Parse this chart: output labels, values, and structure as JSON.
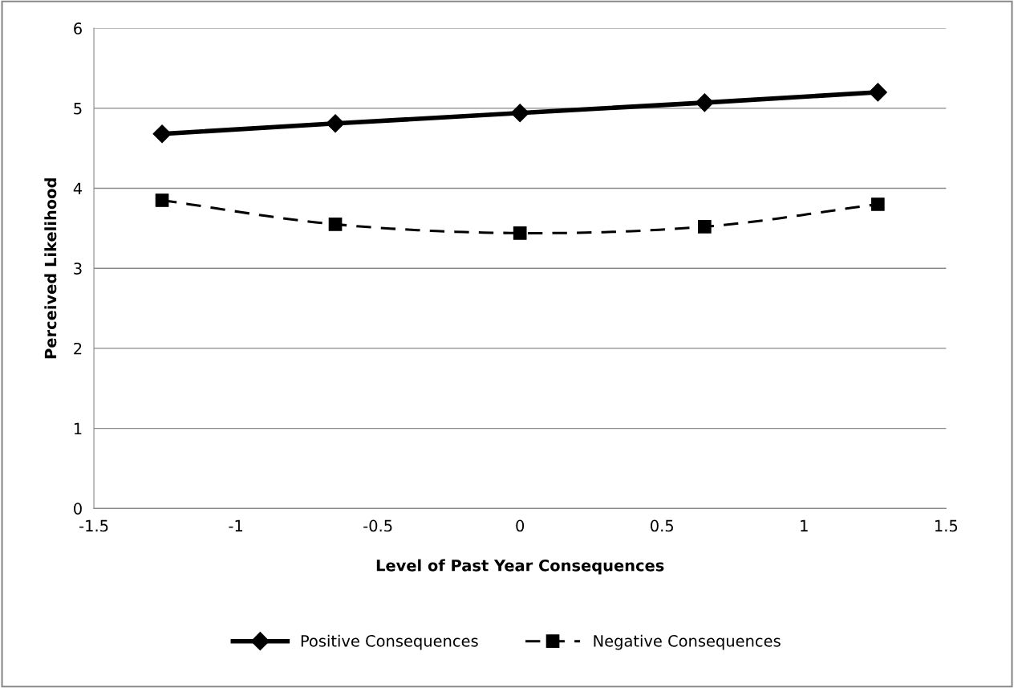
{
  "chart_data": {
    "type": "line",
    "xlabel": "Level of Past Year Consequences",
    "ylabel": "Perceived Likelihood",
    "x": [
      -1.26,
      -0.65,
      0,
      0.65,
      1.26
    ],
    "series": [
      {
        "name": "Positive Consequences",
        "color": "#000000",
        "values": [
          4.68,
          4.81,
          4.94,
          5.07,
          5.2
        ],
        "marker": "diamond",
        "line_style": "solid"
      },
      {
        "name": "Negative Consequences",
        "color": "#000000",
        "values": [
          3.85,
          3.55,
          3.44,
          3.52,
          3.8
        ],
        "marker": "square",
        "line_style": "dashed"
      }
    ],
    "xlim": [
      -1.5,
      1.5
    ],
    "xticks": [
      -1.5,
      -1,
      -0.5,
      0,
      0.5,
      1,
      1.5
    ],
    "ylim": [
      0,
      6
    ],
    "yticks": [
      0,
      1,
      2,
      3,
      4,
      5,
      6
    ],
    "grid": "y",
    "legend": "bottom"
  }
}
